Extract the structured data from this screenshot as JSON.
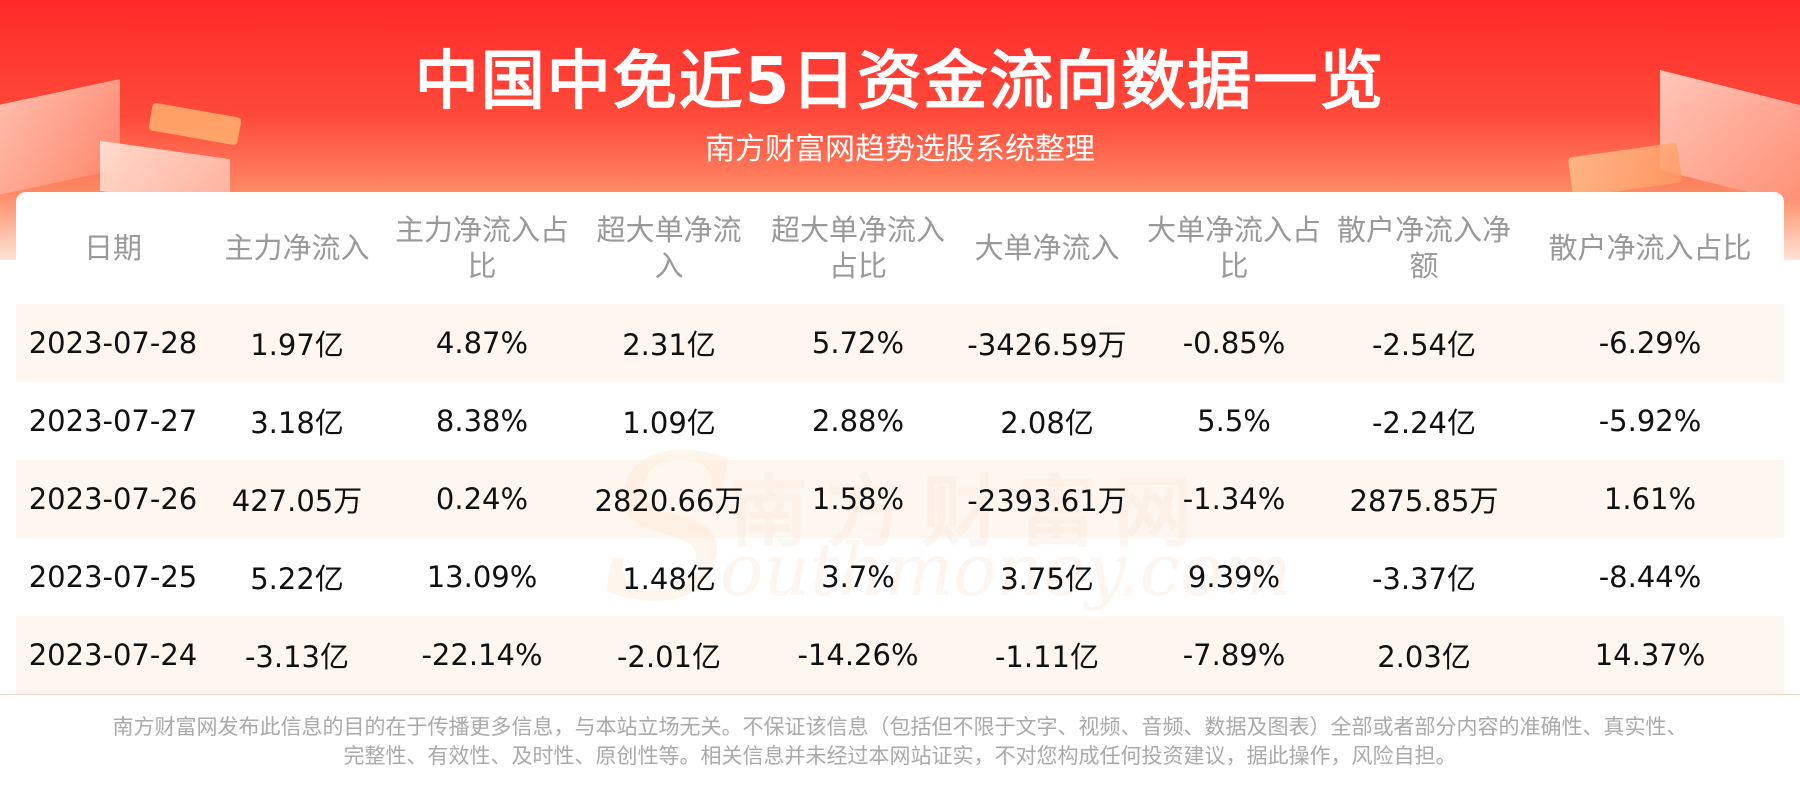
{
  "header": {
    "title": "中国中免近5日资金流向数据一览",
    "subtitle": "南方财富网趋势选股系统整理"
  },
  "watermark": {
    "cn": "南方财富网",
    "en": "outhmoney.com",
    "s": "S"
  },
  "table": {
    "columns": [
      "日期",
      "主力净流入",
      "主力净流入占比",
      "超大单净流入",
      "超大单净流入占比",
      "大单净流入",
      "大单净流入占比",
      "散户净流入净额",
      "散户净流入占比"
    ],
    "rows": [
      [
        "2023-07-28",
        "1.97亿",
        "4.87%",
        "2.31亿",
        "5.72%",
        "-3426.59万",
        "-0.85%",
        "-2.54亿",
        "-6.29%"
      ],
      [
        "2023-07-27",
        "3.18亿",
        "8.38%",
        "1.09亿",
        "2.88%",
        "2.08亿",
        "5.5%",
        "-2.24亿",
        "-5.92%"
      ],
      [
        "2023-07-26",
        "427.05万",
        "0.24%",
        "2820.66万",
        "1.58%",
        "-2393.61万",
        "-1.34%",
        "2875.85万",
        "1.61%"
      ],
      [
        "2023-07-25",
        "5.22亿",
        "13.09%",
        "1.48亿",
        "3.7%",
        "3.75亿",
        "9.39%",
        "-3.37亿",
        "-8.44%"
      ],
      [
        "2023-07-24",
        "-3.13亿",
        "-22.14%",
        "-2.01亿",
        "-14.26%",
        "-1.11亿",
        "-7.89%",
        "2.03亿",
        "14.37%"
      ]
    ]
  },
  "footer": {
    "line1": "南方财富网发布此信息的目的在于传播更多信息，与本站立场无关。不保证该信息（包括但不限于文字、视频、音频、数据及图表）全部或者部分内容的准确性、真实性、",
    "line2": "完整性、有效性、及时性、原创性等。相关信息并未经过本网站证实，不对您构成任何投资建议，据此操作，风险自担。"
  },
  "colors": {
    "header_red": "#ff2a2a",
    "row_stripe": "#fff3e9",
    "header_text": "#999999"
  }
}
